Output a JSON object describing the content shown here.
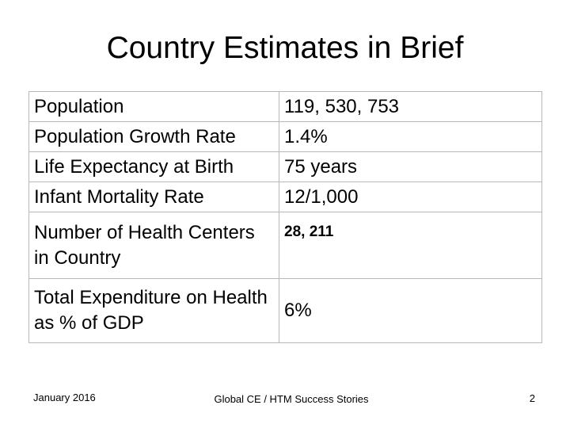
{
  "slide": {
    "title": "Country Estimates in Brief"
  },
  "table": {
    "rows": [
      {
        "label": "Population",
        "value": "119, 530, 753"
      },
      {
        "label": "Population Growth Rate",
        "value": "1.4%"
      },
      {
        "label": "Life Expectancy at Birth",
        "value": "75 years"
      },
      {
        "label": "Infant Mortality Rate",
        "value": "12/1,000"
      },
      {
        "label": "Number of Health Centers in Country",
        "value": "28, 211"
      },
      {
        "label": "Total Expenditure on Health as % of GDP",
        "value": "6%"
      }
    ]
  },
  "footer": {
    "date": "January 2016",
    "center": "Global CE / HTM Success Stories",
    "page_number": "2"
  }
}
